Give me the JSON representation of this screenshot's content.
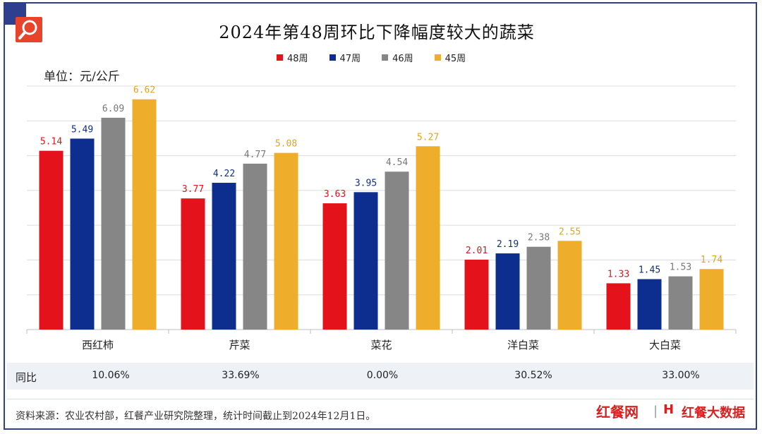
{
  "title": "2024年第48周环比下降幅度较大的蔬菜",
  "unit_label": "单位：元/公斤",
  "colors": {
    "frame": "#2f3f8f",
    "w48": "#e3121b",
    "w47": "#0d2e8e",
    "w46": "#868686",
    "w45": "#eeae2c"
  },
  "chart_data": {
    "type": "bar",
    "categories": [
      "西红柿",
      "芹菜",
      "菜花",
      "洋白菜",
      "大白菜"
    ],
    "series": [
      {
        "name": "48周",
        "values": [
          5.14,
          3.77,
          3.63,
          2.01,
          1.33
        ]
      },
      {
        "name": "47周",
        "values": [
          5.49,
          4.22,
          3.95,
          2.19,
          1.45
        ]
      },
      {
        "name": "46周",
        "values": [
          6.09,
          4.77,
          4.54,
          2.38,
          1.53
        ]
      },
      {
        "name": "45周",
        "values": [
          6.62,
          5.08,
          5.27,
          2.55,
          1.74
        ]
      }
    ],
    "ylim": [
      0,
      7
    ],
    "grid": true,
    "legend": "top"
  },
  "yoy": {
    "label": "同比",
    "values": [
      "10.06%",
      "33.69%",
      "0.00%",
      "30.52%",
      "33.00%"
    ]
  },
  "source": "资料来源：农业农村部，红餐产业研究院整理，统计时间截止到2024年12月1日。",
  "brand": {
    "logo1": "红餐网",
    "logo2_mark": "H",
    "logo2": "红餐大数据",
    "separator": "|"
  }
}
